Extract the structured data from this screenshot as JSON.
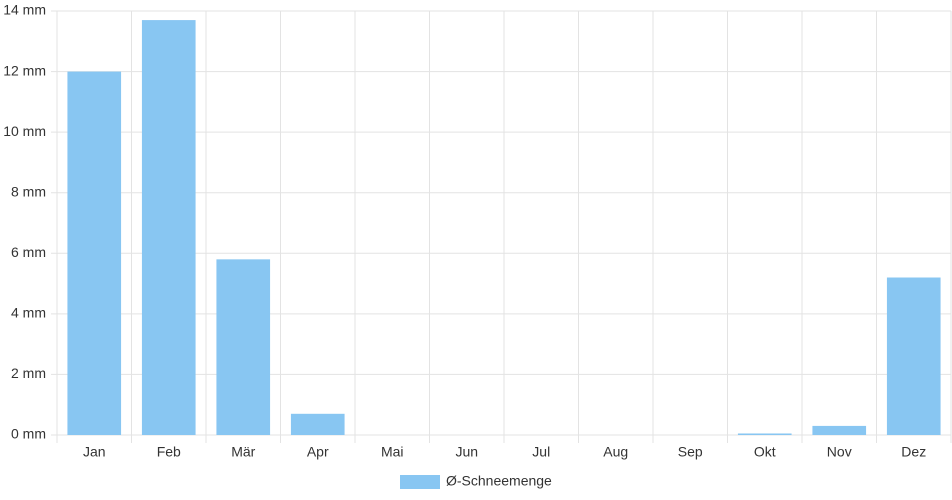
{
  "chart_data": {
    "type": "bar",
    "categories": [
      "Jan",
      "Feb",
      "Mär",
      "Apr",
      "Mai",
      "Jun",
      "Jul",
      "Aug",
      "Sep",
      "Okt",
      "Nov",
      "Dez"
    ],
    "series": [
      {
        "name": "Ø-Schneemenge",
        "color": "#88c6f2",
        "values": [
          12.0,
          13.7,
          5.8,
          0.7,
          0,
          0,
          0,
          0,
          0,
          0.05,
          0.3,
          5.2
        ]
      }
    ],
    "ylim": [
      0,
      14
    ],
    "yticks": [
      {
        "value": 0,
        "label": "0 mm"
      },
      {
        "value": 2,
        "label": "2 mm"
      },
      {
        "value": 4,
        "label": "4 mm"
      },
      {
        "value": 6,
        "label": "6 mm"
      },
      {
        "value": 8,
        "label": "8 mm"
      },
      {
        "value": 10,
        "label": "10 mm"
      },
      {
        "value": 12,
        "label": "12 mm"
      },
      {
        "value": 14,
        "label": "14 mm"
      }
    ],
    "grid": true,
    "legend": "bottom"
  }
}
